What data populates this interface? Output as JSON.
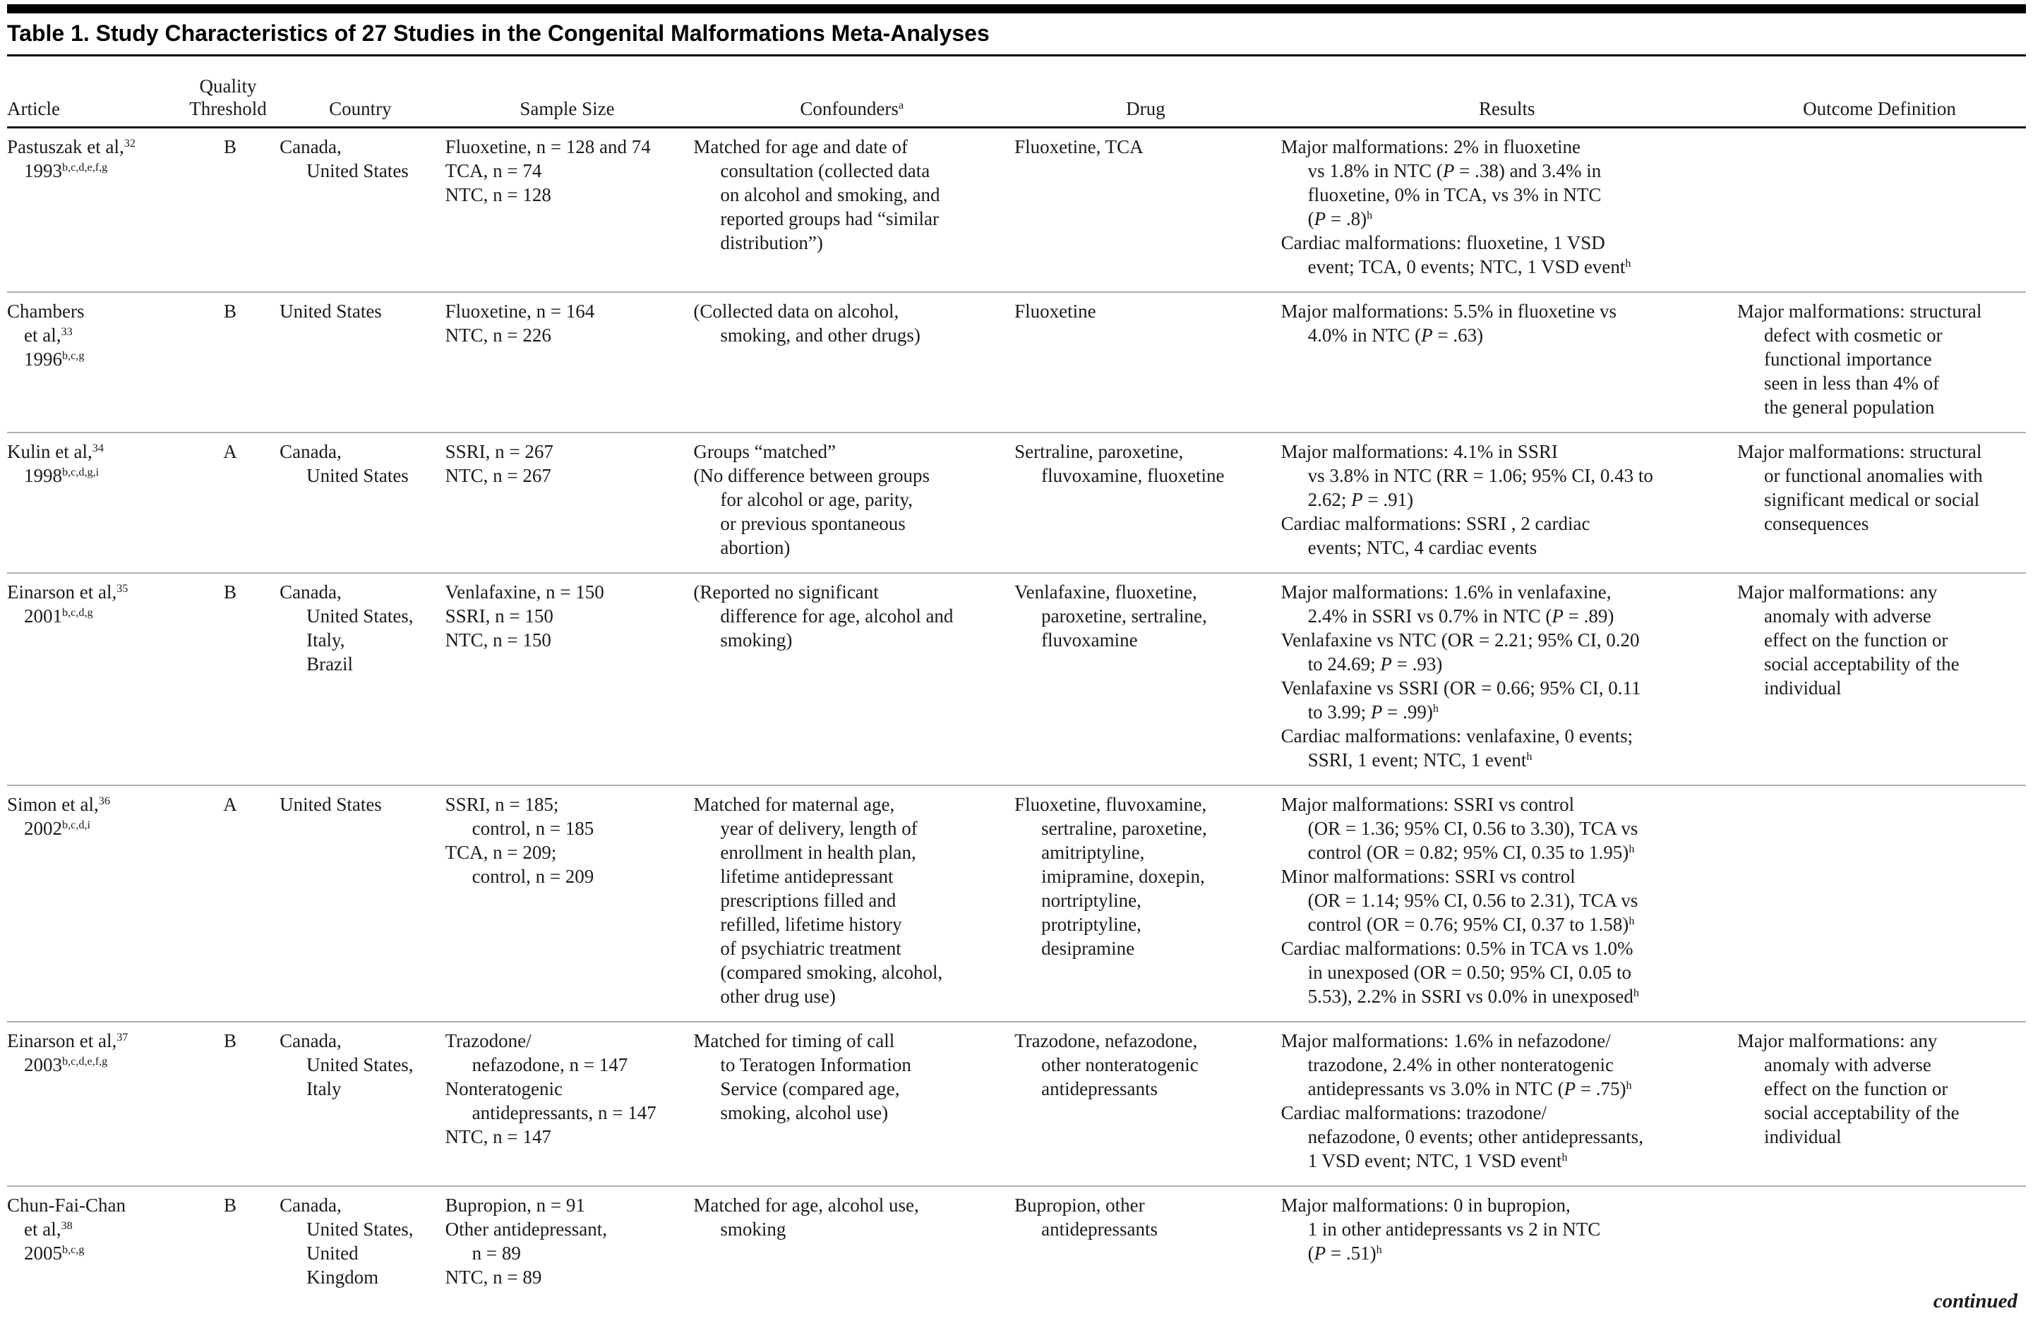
{
  "table": {
    "title": "Table 1. Study Characteristics of 27 Studies in the Congenital Malformations Meta-Analyses",
    "continued_label": "continued",
    "columns": [
      {
        "key": "article",
        "label": [
          "Article"
        ]
      },
      {
        "key": "quality",
        "label": [
          "Quality",
          "Threshold"
        ]
      },
      {
        "key": "country",
        "label": [
          "Country"
        ]
      },
      {
        "key": "sample_size",
        "label": [
          "Sample Size"
        ]
      },
      {
        "key": "confounders",
        "label": [
          "Confounders^{a}"
        ]
      },
      {
        "key": "drug",
        "label": [
          "Drug"
        ]
      },
      {
        "key": "results",
        "label": [
          "Results"
        ]
      },
      {
        "key": "outcome",
        "label": [
          "Outcome Definition"
        ]
      }
    ],
    "rows": [
      {
        "article": [
          {
            "t": "Pastuszak et al,^{32}",
            "i": 0
          },
          {
            "t": "1993^{b,c,d,e,f,g}",
            "i": 1
          }
        ],
        "quality": "B",
        "country": [
          {
            "t": "Canada,",
            "i": 0
          },
          {
            "t": "United States",
            "i": 1
          }
        ],
        "sample_size": [
          {
            "t": "Fluoxetine, n = 128 and 74",
            "i": 0
          },
          {
            "t": "TCA, n = 74",
            "i": 0
          },
          {
            "t": "NTC, n = 128",
            "i": 0
          }
        ],
        "confounders": [
          {
            "t": "Matched for age and date of",
            "i": 0
          },
          {
            "t": "consultation (collected data",
            "i": 1
          },
          {
            "t": "on alcohol and smoking, and",
            "i": 1
          },
          {
            "t": "reported groups had “similar",
            "i": 1
          },
          {
            "t": "distribution”)",
            "i": 1
          }
        ],
        "drug": [
          {
            "t": "Fluoxetine, TCA",
            "i": 0
          }
        ],
        "results": [
          {
            "t": "Major malformations: 2% in fluoxetine",
            "i": 0
          },
          {
            "t": "vs 1.8% in NTC (*P* = .38) and 3.4% in",
            "i": 1
          },
          {
            "t": "fluoxetine, 0% in TCA, vs 3% in NTC",
            "i": 1
          },
          {
            "t": "(*P* = .8)^{h}",
            "i": 1
          },
          {
            "t": "Cardiac malformations: fluoxetine, 1 VSD",
            "i": 0
          },
          {
            "t": "event; TCA, 0 events; NTC, 1 VSD event^{h}",
            "i": 1
          }
        ],
        "outcome": []
      },
      {
        "article": [
          {
            "t": "Chambers",
            "i": 0
          },
          {
            "t": "et al,^{33}",
            "i": 1
          },
          {
            "t": "1996^{b,c,g}",
            "i": 1
          }
        ],
        "quality": "B",
        "country": [
          {
            "t": "United States",
            "i": 0
          }
        ],
        "sample_size": [
          {
            "t": "Fluoxetine, n = 164",
            "i": 0
          },
          {
            "t": "NTC, n = 226",
            "i": 0
          }
        ],
        "confounders": [
          {
            "t": "(Collected data on alcohol,",
            "i": 0
          },
          {
            "t": "smoking, and other drugs)",
            "i": 1
          }
        ],
        "drug": [
          {
            "t": "Fluoxetine",
            "i": 0
          }
        ],
        "results": [
          {
            "t": "Major malformations: 5.5% in fluoxetine vs",
            "i": 0
          },
          {
            "t": "4.0% in NTC (*P* = .63)",
            "i": 1
          }
        ],
        "outcome": [
          {
            "t": "Major malformations: structural",
            "i": 0
          },
          {
            "t": "defect with cosmetic or",
            "i": 1
          },
          {
            "t": "functional importance",
            "i": 1
          },
          {
            "t": "seen in less than 4% of",
            "i": 1
          },
          {
            "t": "the general population",
            "i": 1
          }
        ]
      },
      {
        "article": [
          {
            "t": "Kulin et al,^{34}",
            "i": 0
          },
          {
            "t": "1998^{b,c,d,g,i}",
            "i": 1
          }
        ],
        "quality": "A",
        "country": [
          {
            "t": "Canada,",
            "i": 0
          },
          {
            "t": "United States",
            "i": 1
          }
        ],
        "sample_size": [
          {
            "t": "SSRI, n = 267",
            "i": 0
          },
          {
            "t": "NTC, n = 267",
            "i": 0
          }
        ],
        "confounders": [
          {
            "t": "Groups “matched”",
            "i": 0
          },
          {
            "t": "(No difference between groups",
            "i": 0
          },
          {
            "t": "for alcohol or age, parity,",
            "i": 1
          },
          {
            "t": "or previous spontaneous",
            "i": 1
          },
          {
            "t": "abortion)",
            "i": 1
          }
        ],
        "drug": [
          {
            "t": "Sertraline, paroxetine,",
            "i": 0
          },
          {
            "t": "fluvoxamine, fluoxetine",
            "i": 1
          }
        ],
        "results": [
          {
            "t": "Major malformations: 4.1% in SSRI",
            "i": 0
          },
          {
            "t": "vs 3.8% in NTC (RR = 1.06; 95% CI, 0.43 to",
            "i": 1
          },
          {
            "t": "2.62; *P* = .91)",
            "i": 1
          },
          {
            "t": "Cardiac malformations: SSRI , 2 cardiac",
            "i": 0
          },
          {
            "t": "events; NTC, 4 cardiac events",
            "i": 1
          }
        ],
        "outcome": [
          {
            "t": "Major malformations: structural",
            "i": 0
          },
          {
            "t": "or functional anomalies with",
            "i": 1
          },
          {
            "t": "significant medical or social",
            "i": 1
          },
          {
            "t": "consequences",
            "i": 1
          }
        ]
      },
      {
        "article": [
          {
            "t": "Einarson et al,^{35}",
            "i": 0
          },
          {
            "t": "2001^{b,c,d,g}",
            "i": 1
          }
        ],
        "quality": "B",
        "country": [
          {
            "t": "Canada,",
            "i": 0
          },
          {
            "t": "United States,",
            "i": 1
          },
          {
            "t": "Italy,",
            "i": 1
          },
          {
            "t": "Brazil",
            "i": 1
          }
        ],
        "sample_size": [
          {
            "t": "Venlafaxine, n = 150",
            "i": 0
          },
          {
            "t": "SSRI, n = 150",
            "i": 0
          },
          {
            "t": "NTC, n = 150",
            "i": 0
          }
        ],
        "confounders": [
          {
            "t": "(Reported no significant",
            "i": 0
          },
          {
            "t": "difference for age, alcohol and",
            "i": 1
          },
          {
            "t": "smoking)",
            "i": 1
          }
        ],
        "drug": [
          {
            "t": "Venlafaxine, fluoxetine,",
            "i": 0
          },
          {
            "t": "paroxetine, sertraline,",
            "i": 1
          },
          {
            "t": "fluvoxamine",
            "i": 1
          }
        ],
        "results": [
          {
            "t": "Major malformations: 1.6% in venlafaxine,",
            "i": 0
          },
          {
            "t": "2.4% in SSRI vs 0.7% in NTC (*P* = .89)",
            "i": 1
          },
          {
            "t": "Venlafaxine vs NTC (OR = 2.21; 95% CI, 0.20",
            "i": 0
          },
          {
            "t": "to 24.69; *P* = .93)",
            "i": 1
          },
          {
            "t": "Venlafaxine vs SSRI (OR = 0.66; 95% CI, 0.11",
            "i": 0
          },
          {
            "t": "to 3.99; *P* = .99)^{h}",
            "i": 1
          },
          {
            "t": "Cardiac malformations: venlafaxine, 0 events;",
            "i": 0
          },
          {
            "t": "SSRI, 1 event; NTC, 1 event^{h}",
            "i": 1
          }
        ],
        "outcome": [
          {
            "t": "Major malformations: any",
            "i": 0
          },
          {
            "t": "anomaly with adverse",
            "i": 1
          },
          {
            "t": "effect on the function or",
            "i": 1
          },
          {
            "t": "social acceptability of the",
            "i": 1
          },
          {
            "t": "individual",
            "i": 1
          }
        ]
      },
      {
        "article": [
          {
            "t": "Simon et al,^{36}",
            "i": 0
          },
          {
            "t": "2002^{b,c,d,i}",
            "i": 1
          }
        ],
        "quality": "A",
        "country": [
          {
            "t": "United States",
            "i": 0
          }
        ],
        "sample_size": [
          {
            "t": "SSRI, n = 185;",
            "i": 0
          },
          {
            "t": "control, n = 185",
            "i": 1
          },
          {
            "t": "TCA, n = 209;",
            "i": 0
          },
          {
            "t": "control, n = 209",
            "i": 1
          }
        ],
        "confounders": [
          {
            "t": "Matched for maternal age,",
            "i": 0
          },
          {
            "t": "year of delivery, length of",
            "i": 1
          },
          {
            "t": "enrollment in health plan,",
            "i": 1
          },
          {
            "t": "lifetime antidepressant",
            "i": 1
          },
          {
            "t": "prescriptions filled and",
            "i": 1
          },
          {
            "t": "refilled, lifetime history",
            "i": 1
          },
          {
            "t": "of psychiatric treatment",
            "i": 1
          },
          {
            "t": "(compared smoking, alcohol,",
            "i": 1
          },
          {
            "t": "other drug use)",
            "i": 1
          }
        ],
        "drug": [
          {
            "t": "Fluoxetine, fluvoxamine,",
            "i": 0
          },
          {
            "t": "sertraline, paroxetine,",
            "i": 1
          },
          {
            "t": "amitriptyline,",
            "i": 1
          },
          {
            "t": "imipramine, doxepin,",
            "i": 1
          },
          {
            "t": "nortriptyline,",
            "i": 1
          },
          {
            "t": "protriptyline,",
            "i": 1
          },
          {
            "t": "desipramine",
            "i": 1
          }
        ],
        "results": [
          {
            "t": "Major malformations: SSRI vs control",
            "i": 0
          },
          {
            "t": "(OR = 1.36; 95% CI, 0.56 to 3.30), TCA vs",
            "i": 1
          },
          {
            "t": "control (OR = 0.82; 95% CI, 0.35 to 1.95)^{h}",
            "i": 1
          },
          {
            "t": "Minor malformations: SSRI vs control",
            "i": 0
          },
          {
            "t": "(OR = 1.14; 95% CI, 0.56 to 2.31), TCA vs",
            "i": 1
          },
          {
            "t": "control (OR = 0.76; 95% CI, 0.37 to 1.58)^{h}",
            "i": 1
          },
          {
            "t": "Cardiac malformations: 0.5% in TCA vs 1.0%",
            "i": 0
          },
          {
            "t": "in unexposed (OR = 0.50; 95% CI, 0.05 to",
            "i": 1
          },
          {
            "t": "5.53), 2.2% in SSRI vs 0.0% in unexposed^{h}",
            "i": 1
          }
        ],
        "outcome": []
      },
      {
        "article": [
          {
            "t": "Einarson et al,^{37}",
            "i": 0
          },
          {
            "t": "2003^{b,c,d,e,f,g}",
            "i": 1
          }
        ],
        "quality": "B",
        "country": [
          {
            "t": "Canada,",
            "i": 0
          },
          {
            "t": "United States,",
            "i": 1
          },
          {
            "t": "Italy",
            "i": 1
          }
        ],
        "sample_size": [
          {
            "t": "Trazodone/",
            "i": 0
          },
          {
            "t": "nefazodone, n = 147",
            "i": 1
          },
          {
            "t": "Nonteratogenic",
            "i": 0
          },
          {
            "t": "antidepressants, n = 147",
            "i": 1
          },
          {
            "t": "NTC, n = 147",
            "i": 0
          }
        ],
        "confounders": [
          {
            "t": "Matched for timing of call",
            "i": 0
          },
          {
            "t": "to Teratogen Information",
            "i": 1
          },
          {
            "t": "Service (compared age,",
            "i": 1
          },
          {
            "t": "smoking, alcohol use)",
            "i": 1
          }
        ],
        "drug": [
          {
            "t": "Trazodone, nefazodone,",
            "i": 0
          },
          {
            "t": "other nonteratogenic",
            "i": 1
          },
          {
            "t": "antidepressants",
            "i": 1
          }
        ],
        "results": [
          {
            "t": "Major malformations: 1.6% in nefazodone/",
            "i": 0
          },
          {
            "t": "trazodone, 2.4% in other nonteratogenic",
            "i": 1
          },
          {
            "t": "antidepressants vs 3.0% in NTC (*P* = .75)^{h}",
            "i": 1
          },
          {
            "t": "Cardiac malformations: trazodone/",
            "i": 0
          },
          {
            "t": "nefazodone, 0 events; other antidepressants,",
            "i": 1
          },
          {
            "t": "1 VSD event; NTC, 1 VSD event^{h}",
            "i": 1
          }
        ],
        "outcome": [
          {
            "t": "Major malformations: any",
            "i": 0
          },
          {
            "t": "anomaly with adverse",
            "i": 1
          },
          {
            "t": "effect on the function or",
            "i": 1
          },
          {
            "t": "social acceptability of the",
            "i": 1
          },
          {
            "t": "individual",
            "i": 1
          }
        ]
      },
      {
        "article": [
          {
            "t": "Chun-Fai-Chan",
            "i": 0
          },
          {
            "t": "et al,^{38}",
            "i": 1
          },
          {
            "t": "2005^{b,c,g}",
            "i": 1
          }
        ],
        "quality": "B",
        "country": [
          {
            "t": "Canada,",
            "i": 0
          },
          {
            "t": "United States,",
            "i": 1
          },
          {
            "t": "United",
            "i": 1
          },
          {
            "t": "Kingdom",
            "i": 1
          }
        ],
        "sample_size": [
          {
            "t": "Bupropion, n = 91",
            "i": 0
          },
          {
            "t": "Other antidepressant,",
            "i": 0
          },
          {
            "t": "n = 89",
            "i": 1
          },
          {
            "t": "NTC, n = 89",
            "i": 0
          }
        ],
        "confounders": [
          {
            "t": "Matched for age, alcohol use,",
            "i": 0
          },
          {
            "t": "smoking",
            "i": 1
          }
        ],
        "drug": [
          {
            "t": "Bupropion, other",
            "i": 0
          },
          {
            "t": "antidepressants",
            "i": 1
          }
        ],
        "results": [
          {
            "t": "Major malformations: 0 in bupropion,",
            "i": 0
          },
          {
            "t": "1 in other antidepressants vs 2 in NTC",
            "i": 1
          },
          {
            "t": "(*P* = .51)^{h}",
            "i": 1
          }
        ],
        "outcome": []
      }
    ]
  }
}
